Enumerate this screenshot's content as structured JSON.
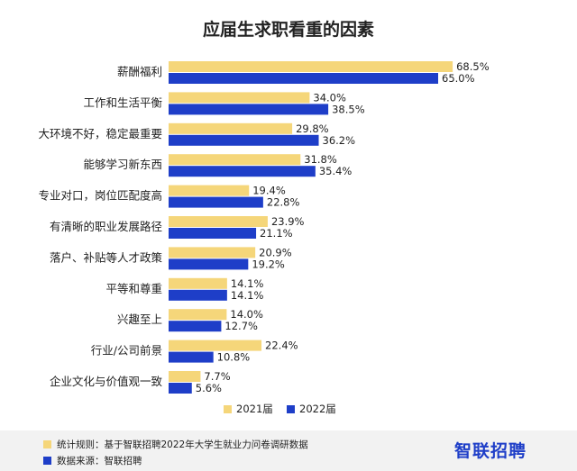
{
  "chart_data": {
    "type": "bar",
    "orientation": "horizontal",
    "title": "应届生求职看重的因素",
    "categories": [
      "薪酬福利",
      "工作和生活平衡",
      "大环境不好，稳定最重要",
      "能够学习新东西",
      "专业对口，岗位匹配度高",
      "有清晰的职业发展路径",
      "落户、补贴等人才政策",
      "平等和尊重",
      "兴趣至上",
      "行业/公司前景",
      "企业文化与价值观一致"
    ],
    "series": [
      {
        "name": "2021届",
        "color": "#f5d67a",
        "values": [
          68.5,
          34.0,
          29.8,
          31.8,
          19.4,
          23.9,
          20.9,
          14.1,
          14.0,
          22.4,
          7.7
        ]
      },
      {
        "name": "2022届",
        "color": "#1e3ec8",
        "values": [
          65.0,
          38.5,
          36.2,
          35.4,
          22.8,
          21.1,
          19.2,
          14.1,
          12.7,
          10.8,
          5.6
        ]
      }
    ],
    "value_suffix": "%",
    "xlim": [
      0,
      75
    ],
    "grid": false,
    "legend_position": "bottom-center"
  },
  "footer": {
    "note_label": "统计规则：基于智联招聘2022年大学生就业力问卷调研数据",
    "note_color": "#f5d67a",
    "source_label": "数据来源：智联招聘",
    "source_color": "#1e3ec8",
    "brand": "智联招聘"
  }
}
